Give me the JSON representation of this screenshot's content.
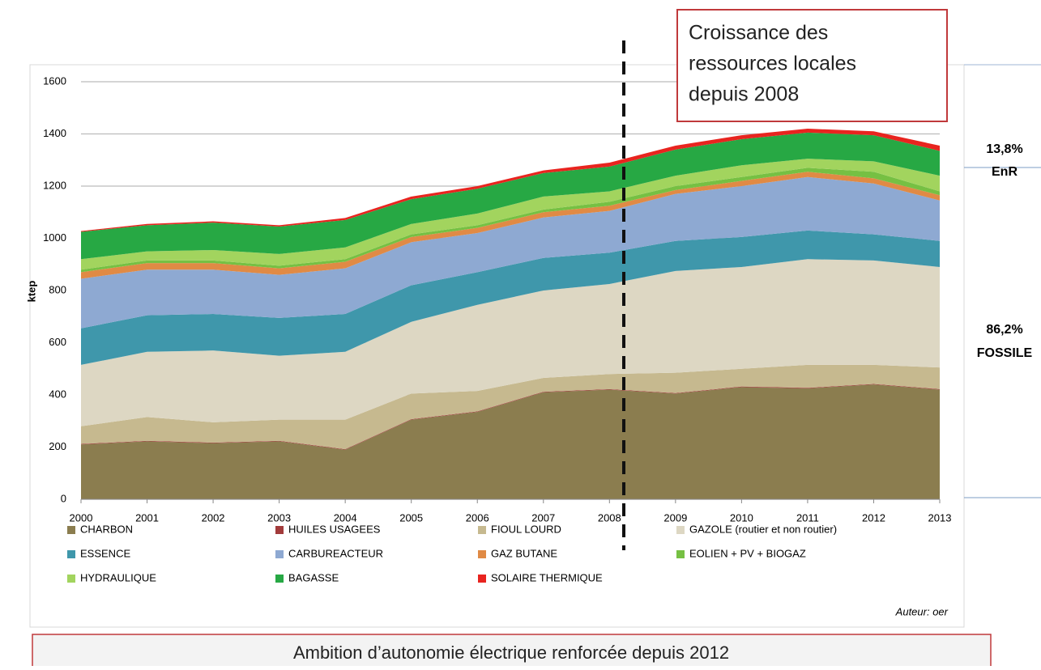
{
  "chart_data": {
    "type": "stacked_area",
    "y_label": "ktep",
    "annotation": [
      "Croissance des",
      "ressources locales",
      "depuis 2008"
    ],
    "share_enr": [
      "13,8%",
      "EnR"
    ],
    "share_fossile": [
      "86,2%",
      "FOSSILE"
    ],
    "author": "Auteur: oer",
    "footer": "Ambition d’autonomie électrique renforcée depuis 2012",
    "x": [
      2000,
      2001,
      2002,
      2003,
      2004,
      2005,
      2006,
      2007,
      2008,
      2009,
      2010,
      2011,
      2012,
      2013
    ],
    "xlim": [
      2000,
      2013
    ],
    "xticks": [
      2000,
      2001,
      2002,
      2003,
      2004,
      2005,
      2006,
      2007,
      2008,
      2009,
      2010,
      2011,
      2012,
      2013
    ],
    "ylim": [
      0,
      1600
    ],
    "yticks": [
      0,
      200,
      400,
      600,
      800,
      1000,
      1200,
      1400,
      1600
    ],
    "grid": true,
    "series": [
      {
        "name": "CHARBON",
        "color": "#8b7d4f",
        "values": [
          210,
          222,
          215,
          222,
          190,
          305,
          335,
          410,
          420,
          405,
          430,
          425,
          440,
          420
        ]
      },
      {
        "name": "HUILES USAGEES",
        "color": "#a23b3b",
        "values": [
          2,
          2,
          2,
          2,
          2,
          2,
          2,
          2,
          2,
          2,
          2,
          2,
          2,
          2
        ]
      },
      {
        "name": "FIOUL LOURD",
        "color": "#c6b98f",
        "values": [
          68,
          91,
          78,
          81,
          113,
          98,
          78,
          53,
          58,
          78,
          68,
          88,
          73,
          83
        ]
      },
      {
        "name": "GAZOLE (routier et non routier)",
        "color": "#ddd7c3",
        "values": [
          235,
          250,
          275,
          245,
          260,
          275,
          330,
          335,
          345,
          390,
          390,
          405,
          400,
          385
        ]
      },
      {
        "name": "ESSENCE",
        "color": "#3f97ab",
        "values": [
          140,
          140,
          140,
          145,
          145,
          140,
          125,
          125,
          120,
          115,
          115,
          110,
          100,
          100
        ]
      },
      {
        "name": "CARBUREACTEUR",
        "color": "#8ea9d2",
        "values": [
          190,
          175,
          170,
          165,
          175,
          165,
          150,
          155,
          160,
          180,
          195,
          205,
          195,
          155
        ]
      },
      {
        "name": "GAZ BUTANE",
        "color": "#e08a45",
        "values": [
          25,
          25,
          25,
          25,
          25,
          20,
          20,
          20,
          20,
          15,
          20,
          20,
          20,
          20
        ]
      },
      {
        "name": "EOLIEN + PV + BIOGAZ",
        "color": "#76c043",
        "values": [
          10,
          10,
          10,
          10,
          10,
          10,
          10,
          10,
          15,
          15,
          15,
          15,
          25,
          15
        ]
      },
      {
        "name": "HYDRAULIQUE",
        "color": "#a2d45e",
        "values": [
          40,
          35,
          40,
          45,
          45,
          40,
          45,
          50,
          40,
          40,
          45,
          35,
          40,
          60
        ]
      },
      {
        "name": "BAGASSE",
        "color": "#27a844",
        "values": [
          105,
          100,
          105,
          105,
          105,
          95,
          95,
          90,
          95,
          100,
          100,
          100,
          100,
          95
        ]
      },
      {
        "name": "SOLAIRE THERMIQUE",
        "color": "#e8241f",
        "values": [
          3,
          5,
          5,
          5,
          8,
          10,
          10,
          10,
          15,
          15,
          15,
          15,
          15,
          20
        ]
      }
    ]
  }
}
